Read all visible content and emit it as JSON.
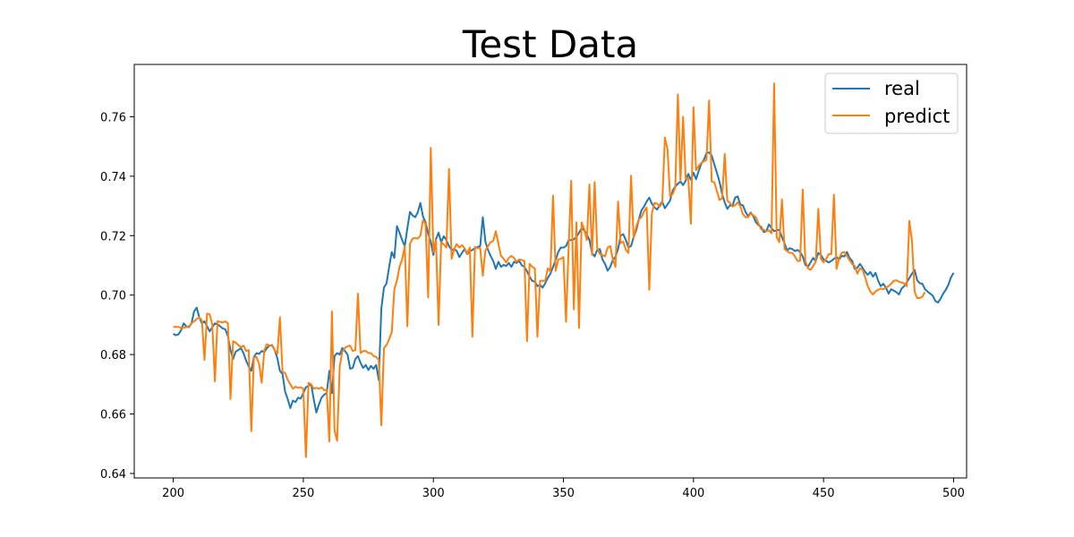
{
  "chart_data": {
    "type": "line",
    "title": "Test Data",
    "xlabel": "",
    "ylabel": "",
    "xlim": [
      185,
      505
    ],
    "ylim": [
      0.6385,
      0.7776
    ],
    "xticks": [
      200,
      250,
      300,
      350,
      400,
      450,
      500
    ],
    "yticks": [
      0.64,
      0.66,
      0.68,
      0.7,
      0.72,
      0.74,
      0.76
    ],
    "legend_position": "upper-right",
    "grid": false,
    "colors": {
      "real": "#1f77b4",
      "predict": "#ff7f0e"
    },
    "series": [
      {
        "name": "real",
        "x_start": 200,
        "values": [
          0.687,
          0.6865,
          0.6868,
          0.6882,
          0.6905,
          0.6895,
          0.6892,
          0.6905,
          0.6945,
          0.6958,
          0.6925,
          0.6905,
          0.6912,
          0.6895,
          0.6878,
          0.6892,
          0.6905,
          0.6902,
          0.6895,
          0.6888,
          0.6885,
          0.6862,
          0.6815,
          0.6785,
          0.681,
          0.6815,
          0.6822,
          0.6805,
          0.678,
          0.676,
          0.6745,
          0.6792,
          0.6805,
          0.6802,
          0.6812,
          0.6808,
          0.6822,
          0.683,
          0.6832,
          0.6815,
          0.6788,
          0.6745,
          0.6735,
          0.6675,
          0.665,
          0.662,
          0.6645,
          0.664,
          0.6655,
          0.6652,
          0.667,
          0.669,
          0.6695,
          0.67,
          0.665,
          0.6605,
          0.6632,
          0.6655,
          0.6665,
          0.667,
          0.6745,
          0.667,
          0.6795,
          0.6805,
          0.68,
          0.6822,
          0.6812,
          0.68,
          0.6752,
          0.6755,
          0.6785,
          0.6795,
          0.6772,
          0.6755,
          0.6765,
          0.6748,
          0.6762,
          0.6752,
          0.6765,
          0.6715,
          0.6955,
          0.7025,
          0.704,
          0.7095,
          0.7145,
          0.7125,
          0.7232,
          0.721,
          0.7185,
          0.7165,
          0.7225,
          0.728,
          0.7268,
          0.7262,
          0.7278,
          0.731,
          0.7265,
          0.7245,
          0.7205,
          0.718,
          0.7135,
          0.7188,
          0.721,
          0.7178,
          0.7198,
          0.7185,
          0.7165,
          0.7152,
          0.7155,
          0.7148,
          0.7128,
          0.7142,
          0.7155,
          0.7138,
          0.7148,
          0.7152,
          0.7158,
          0.7162,
          0.7165,
          0.7262,
          0.718,
          0.7152,
          0.7132,
          0.7115,
          0.7088,
          0.7112,
          0.7095,
          0.7102,
          0.7098,
          0.7108,
          0.7095,
          0.7112,
          0.7108,
          0.7115,
          0.71,
          0.7095,
          0.708,
          0.7062,
          0.7048,
          0.7045,
          0.703,
          0.7035,
          0.7025,
          0.704,
          0.7058,
          0.7072,
          0.7095,
          0.7118,
          0.7145,
          0.716,
          0.716,
          0.7165,
          0.7185,
          0.7185,
          0.7188,
          0.7195,
          0.721,
          0.7225,
          0.7218,
          0.7205,
          0.7185,
          0.7142,
          0.713,
          0.7152,
          0.7155,
          0.712,
          0.7105,
          0.7082,
          0.7095,
          0.7118,
          0.7128,
          0.7155,
          0.72,
          0.7205,
          0.7185,
          0.716,
          0.7165,
          0.7195,
          0.7218,
          0.7255,
          0.7285,
          0.7298,
          0.7315,
          0.7328,
          0.7308,
          0.7295,
          0.7288,
          0.7302,
          0.7315,
          0.7292,
          0.7305,
          0.7318,
          0.7352,
          0.7365,
          0.7375,
          0.7382,
          0.737,
          0.7385,
          0.7408,
          0.7388,
          0.7412,
          0.739,
          0.7418,
          0.7442,
          0.7455,
          0.7478,
          0.748,
          0.747,
          0.744,
          0.7412,
          0.7382,
          0.734,
          0.7312,
          0.729,
          0.7302,
          0.73,
          0.7328,
          0.7332,
          0.7305,
          0.7302,
          0.728,
          0.7265,
          0.7278,
          0.7265,
          0.7245,
          0.7235,
          0.723,
          0.7212,
          0.7215,
          0.7238,
          0.7225,
          0.7215,
          0.7218,
          0.722,
          0.7195,
          0.7175,
          0.715,
          0.7158,
          0.7155,
          0.7148,
          0.7152,
          0.7145,
          0.713,
          0.7102,
          0.7095,
          0.711,
          0.7125,
          0.7115,
          0.7142,
          0.7135,
          0.712,
          0.7115,
          0.711,
          0.7115,
          0.7122,
          0.7128,
          0.712,
          0.7132,
          0.713,
          0.7145,
          0.7125,
          0.7115,
          0.7088,
          0.7092,
          0.7105,
          0.7092,
          0.7078,
          0.7068,
          0.7078,
          0.7062,
          0.7075,
          0.7048,
          0.703,
          0.7038,
          0.7025,
          0.7005,
          0.702,
          0.7015,
          0.701,
          0.7002,
          0.7022,
          0.703,
          0.7042,
          0.7058,
          0.7072,
          0.7085,
          0.705,
          0.704,
          0.7038,
          0.702,
          0.7012,
          0.7005,
          0.6998,
          0.698,
          0.6975,
          0.6988,
          0.7005,
          0.7018,
          0.7035,
          0.706,
          0.7075
        ]
      },
      {
        "name": "predict",
        "x_start": 200,
        "values": [
          0.6893,
          0.6893,
          0.6893,
          0.689,
          0.689,
          0.6892,
          0.6895,
          0.6905,
          0.6912,
          0.692,
          0.6925,
          0.6915,
          0.6782,
          0.6938,
          0.6935,
          0.6902,
          0.671,
          0.6912,
          0.691,
          0.6908,
          0.6912,
          0.6905,
          0.665,
          0.6845,
          0.684,
          0.6832,
          0.6825,
          0.683,
          0.6812,
          0.6815,
          0.6542,
          0.679,
          0.6792,
          0.6768,
          0.6705,
          0.6815,
          0.6835,
          0.683,
          0.683,
          0.6815,
          0.6802,
          0.6925,
          0.6742,
          0.6738,
          0.6715,
          0.67,
          0.6685,
          0.6692,
          0.6688,
          0.669,
          0.6685,
          0.6455,
          0.6705,
          0.67,
          0.6685,
          0.6688,
          0.6685,
          0.669,
          0.668,
          0.6682,
          0.6508,
          0.6945,
          0.6545,
          0.651,
          0.676,
          0.681,
          0.6822,
          0.6828,
          0.683,
          0.6812,
          0.6815,
          0.7005,
          0.6805,
          0.6812,
          0.6812,
          0.6805,
          0.6805,
          0.6795,
          0.6792,
          0.6782,
          0.6562,
          0.6822,
          0.6832,
          0.6852,
          0.6875,
          0.702,
          0.705,
          0.7095,
          0.712,
          0.7165,
          0.6895,
          0.7172,
          0.719,
          0.7192,
          0.719,
          0.72,
          0.7252,
          0.724,
          0.6992,
          0.7495,
          0.7145,
          0.7185,
          0.69,
          0.7178,
          0.717,
          0.716,
          0.7425,
          0.7122,
          0.7155,
          0.7172,
          0.716,
          0.7168,
          0.7158,
          0.714,
          0.716,
          0.686,
          0.7162,
          0.7158,
          0.7158,
          0.7065,
          0.715,
          0.7165,
          0.7178,
          0.7182,
          0.7215,
          0.7172,
          0.7132,
          0.7122,
          0.711,
          0.7125,
          0.7132,
          0.7125,
          0.7112,
          0.712,
          0.7118,
          0.7115,
          0.6845,
          0.7105,
          0.7095,
          0.709,
          0.686,
          0.7048,
          0.7048,
          0.7048,
          0.709,
          0.708,
          0.7335,
          0.7082,
          0.712,
          0.7122,
          0.7128,
          0.691,
          0.7162,
          0.7385,
          0.6952,
          0.7245,
          0.689,
          0.7245,
          0.7222,
          0.7185,
          0.7372,
          0.7135,
          0.738,
          0.7158,
          0.7138,
          0.7135,
          0.713,
          0.716,
          0.7165,
          0.712,
          0.7095,
          0.7315,
          0.7175,
          0.718,
          0.7152,
          0.7142,
          0.7402,
          0.7192,
          0.723,
          0.7255,
          0.7262,
          0.7282,
          0.7295,
          0.7018,
          0.7275,
          0.731,
          0.7308,
          0.7298,
          0.731,
          0.753,
          0.7492,
          0.7332,
          0.734,
          0.7362,
          0.7675,
          0.7385,
          0.76,
          0.7392,
          0.7395,
          0.724,
          0.7632,
          0.742,
          0.7435,
          0.7445,
          0.745,
          0.7455,
          0.7655,
          0.7382,
          0.738,
          0.735,
          0.732,
          0.7325,
          0.7475,
          0.7318,
          0.731,
          0.7298,
          0.7302,
          0.7312,
          0.73,
          0.7272,
          0.7262,
          0.7262,
          0.7275,
          0.7268,
          0.7262,
          0.724,
          0.7222,
          0.722,
          0.7215,
          0.7218,
          0.7208,
          0.7712,
          0.7195,
          0.7178,
          0.7322,
          0.7155,
          0.7148,
          0.7142,
          0.7142,
          0.713,
          0.7115,
          0.7115,
          0.7355,
          0.7115,
          0.709,
          0.7085,
          0.7098,
          0.7112,
          0.729,
          0.7122,
          0.711,
          0.7122,
          0.7138,
          0.7138,
          0.7338,
          0.7088,
          0.7125,
          0.7142,
          0.7145,
          0.7132,
          0.7118,
          0.7105,
          0.7098,
          0.7072,
          0.709,
          0.7085,
          0.706,
          0.703,
          0.7012,
          0.7002,
          0.7012,
          0.7018,
          0.7022,
          0.702,
          0.7025,
          0.703,
          0.7038,
          0.7048,
          0.705,
          0.7045,
          0.7042,
          0.704,
          0.703,
          0.725,
          0.7182,
          0.7012,
          0.699,
          0.699,
          0.6995,
          0.701
        ]
      }
    ]
  }
}
